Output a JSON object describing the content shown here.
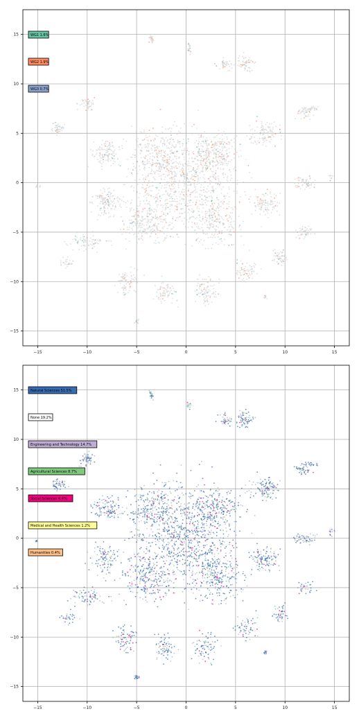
{
  "chart_data": [
    {
      "type": "scatter",
      "title": "",
      "xlabel": "",
      "ylabel": "",
      "xlim": [
        -16.5,
        16.5
      ],
      "ylim": [
        -16.5,
        17.5
      ],
      "xticks": [
        -15,
        -10,
        -5,
        0,
        5,
        10,
        15
      ],
      "yticks": [
        -15,
        -10,
        -5,
        0,
        5,
        10,
        15
      ],
      "tick_labels_x": [
        "−15",
        "−10",
        "−5",
        "0",
        "5",
        "10",
        "15"
      ],
      "tick_labels_y": [
        "−15",
        "−10",
        "−5",
        "0",
        "5",
        "10",
        "15"
      ],
      "grid": true,
      "legend_placement": "upper-left",
      "background_color": "#d3d3d3",
      "series": [
        {
          "name": "WG1 1.6%",
          "color": "#66c2a5",
          "share_percent": 1.6
        },
        {
          "name": "WG2 1.9%",
          "color": "#fc8d62",
          "share_percent": 1.9
        },
        {
          "name": "WG3 0.7%",
          "color": "#8da0cb",
          "share_percent": 0.7
        }
      ]
    },
    {
      "type": "scatter",
      "title": "",
      "xlabel": "",
      "ylabel": "",
      "xlim": [
        -16.5,
        16.5
      ],
      "ylim": [
        -16.5,
        17.5
      ],
      "xticks": [
        -15,
        -10,
        -5,
        0,
        5,
        10,
        15
      ],
      "yticks": [
        -15,
        -10,
        -5,
        0,
        5,
        10,
        15
      ],
      "tick_labels_x": [
        "−15",
        "−10",
        "−5",
        "0",
        "5",
        "10",
        "15"
      ],
      "tick_labels_y": [
        "−15",
        "−10",
        "−5",
        "0",
        "5",
        "10",
        "15"
      ],
      "grid": true,
      "legend_placement": "upper-left",
      "series": [
        {
          "name": "Natural Sciences 51.5%",
          "color": "#386cb0",
          "share_percent": 51.5
        },
        {
          "name": "None 19.2%",
          "color": "#ffffff",
          "share_percent": 19.2
        },
        {
          "name": "Engineering and Technology 14.7%",
          "color": "#beaed4",
          "share_percent": 14.7
        },
        {
          "name": "Agricultural Sciences 8.7%",
          "color": "#7fc97f",
          "share_percent": 8.7
        },
        {
          "name": "Social Sciences 4.4%",
          "color": "#f0027f",
          "share_percent": 4.4
        },
        {
          "name": "Medical and Health Sciences 1.2%",
          "color": "#ffff99",
          "share_percent": 1.2
        },
        {
          "name": "Humanities 0.4%",
          "color": "#fdc086",
          "share_percent": 0.4
        }
      ]
    }
  ]
}
